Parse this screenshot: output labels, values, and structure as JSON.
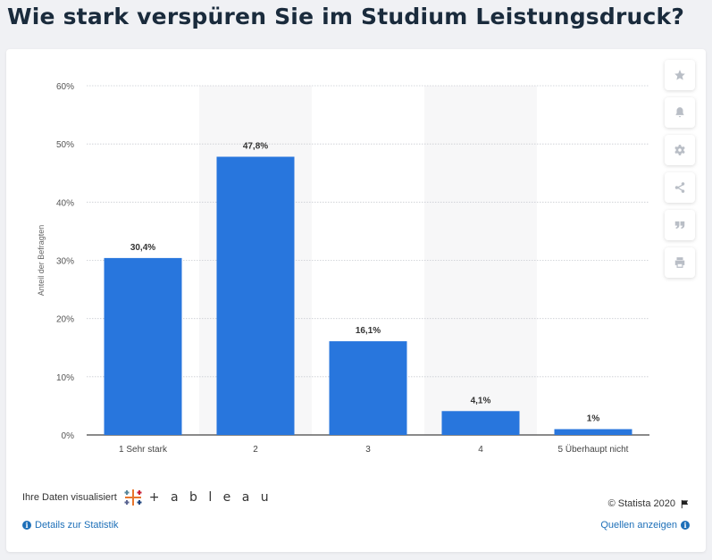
{
  "page": {
    "title": "Wie stark verspüren Sie im Studium Leistungsdruck?"
  },
  "chart_data": {
    "type": "bar",
    "title": "Wie stark verspüren Sie im Studium Leistungsdruck?",
    "categories": [
      "1 Sehr stark",
      "2",
      "3",
      "4",
      "5 Überhaupt nicht"
    ],
    "values": [
      30.4,
      47.8,
      16.1,
      4.1,
      1
    ],
    "data_labels": [
      "30,4%",
      "47,8%",
      "16,1%",
      "4,1%",
      "1%"
    ],
    "y_ticks": [
      0,
      10,
      20,
      30,
      40,
      50,
      60
    ],
    "y_tick_labels": [
      "0%",
      "10%",
      "20%",
      "30%",
      "40%",
      "50%",
      "60%"
    ],
    "ylim": [
      0,
      60
    ],
    "xlabel": "",
    "ylabel": "Anteil der Befragten",
    "grid": true,
    "bar_color": "#2876dd",
    "band_color": "#f7f7f8"
  },
  "tools": [
    "star-icon",
    "bell-icon",
    "gear-icon",
    "share-icon",
    "quote-icon",
    "print-icon"
  ],
  "footer": {
    "visualized_by": "Ihre Daten visualisiert",
    "tableau": "+ a b l e a u",
    "details": "Details zur Statistik",
    "copyright": "© Statista 2020",
    "sources": "Quellen anzeigen"
  }
}
